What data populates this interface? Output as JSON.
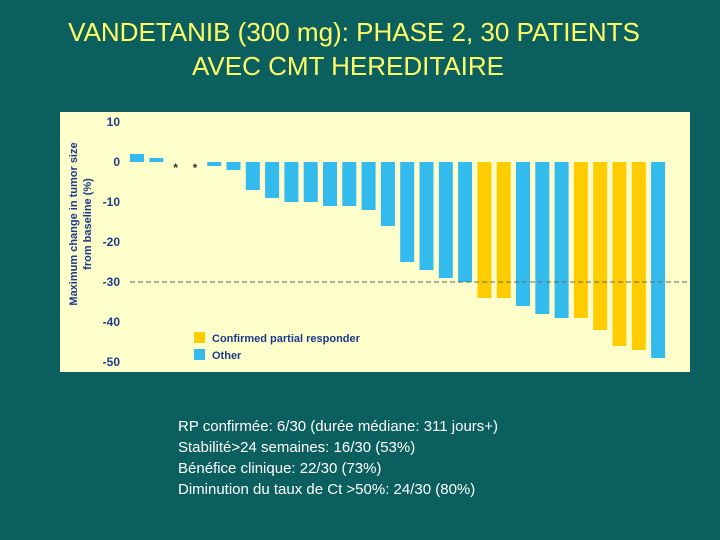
{
  "slide": {
    "title_line1": "VANDETANIB (300 mg): PHASE 2, 30 PATIENTS",
    "title_line2": "AVEC CMT HEREDITAIRE"
  },
  "notes": [
    "RP confirmée: 6/30 (durée médiane: 311 jours+)",
    "Stabilité>24 semaines: 16/30 (53%)",
    "Bénéfice clinique: 22/30 (73%)",
    "Diminution du taux de Ct >50%: 24/30 (80%)"
  ],
  "colors": {
    "background": "#0b5f5f",
    "title": "#ffff66",
    "plot_background": "#ffffcc",
    "other": "#33bbee",
    "responder": "#ffcc00",
    "ylabel": "#1a3a8a"
  },
  "chart_data": {
    "type": "bar",
    "ylabel": "Maximum change in tumor size from baseline (%)",
    "xlabel": "",
    "ylim": [
      -50,
      10
    ],
    "yticks": [
      10,
      0,
      -10,
      -20,
      -30,
      -40,
      -50
    ],
    "reference_line": -30,
    "annotations": [
      "*",
      "*"
    ],
    "legend": {
      "position": "bottom-left",
      "entries": [
        {
          "label": "Confirmed partial responder",
          "group": "responder"
        },
        {
          "label": "Other",
          "group": "other"
        }
      ]
    },
    "values": [
      2,
      1,
      0,
      0,
      -1,
      -2,
      -7,
      -9,
      -10,
      -10,
      -11,
      -11,
      -12,
      -16,
      -25,
      -27,
      -29,
      -30,
      -34,
      -34,
      -36,
      -38,
      -39,
      -39,
      -42,
      -46,
      -47,
      -49
    ],
    "groups": [
      "other",
      "other",
      "other",
      "other",
      "other",
      "other",
      "other",
      "other",
      "other",
      "other",
      "other",
      "other",
      "other",
      "other",
      "other",
      "other",
      "other",
      "other",
      "responder",
      "responder",
      "other",
      "other",
      "other",
      "responder",
      "responder",
      "responder",
      "responder",
      "other"
    ]
  }
}
